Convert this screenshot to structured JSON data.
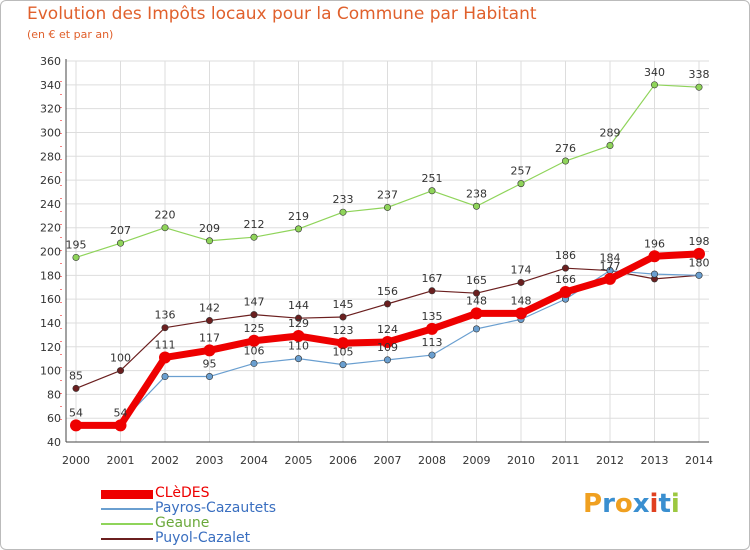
{
  "title": "Evolution des Impôts locaux pour la Commune par Habitant",
  "subtitle": "(en € et par an)",
  "logo": {
    "text": "Proxiti",
    "colors": [
      "#f0a020",
      "#3a8fd0",
      "#f0a020",
      "#3a8fd0",
      "#e04020",
      "#3a8fd0",
      "#9cc840"
    ]
  },
  "chart_data": {
    "type": "line",
    "x": [
      2000,
      2001,
      2002,
      2003,
      2004,
      2005,
      2006,
      2007,
      2008,
      2009,
      2010,
      2011,
      2012,
      2013,
      2014
    ],
    "ylim": [
      40,
      360
    ],
    "yticks": [
      40,
      60,
      80,
      100,
      120,
      140,
      160,
      180,
      200,
      220,
      240,
      260,
      280,
      300,
      320,
      340,
      360
    ],
    "grid": true,
    "legend_position": "bottom-left",
    "series": [
      {
        "name": "CLèDES",
        "color": "#ee0000",
        "values": [
          54,
          54,
          111,
          117,
          125,
          129,
          123,
          124,
          135,
          148,
          148,
          166,
          177,
          196,
          198
        ],
        "labels": [
          "54",
          "54",
          "111",
          "117",
          "125",
          "129",
          "123",
          "124",
          "135",
          "148",
          "148",
          "166",
          "177",
          "196",
          "198"
        ]
      },
      {
        "name": "Payros-Cazautets",
        "color": "#6a9fd0",
        "values": [
          56,
          56,
          95,
          95,
          106,
          110,
          105,
          109,
          113,
          135,
          143,
          160,
          184,
          181,
          180
        ],
        "labels": [
          "",
          "",
          "",
          "95",
          "106",
          "110",
          "105",
          "109",
          "113",
          "",
          "",
          "",
          "",
          "",
          ""
        ]
      },
      {
        "name": "Geaune",
        "color": "#8fd45a",
        "values": [
          195,
          207,
          220,
          209,
          212,
          219,
          233,
          237,
          251,
          238,
          257,
          276,
          289,
          340,
          338
        ],
        "labels": [
          "195",
          "207",
          "220",
          "209",
          "212",
          "219",
          "233",
          "237",
          "251",
          "238",
          "257",
          "276",
          "289",
          "340",
          "338"
        ]
      },
      {
        "name": "Puyol-Cazalet",
        "color": "#6b1f1f",
        "values": [
          85,
          100,
          136,
          142,
          147,
          144,
          145,
          156,
          167,
          165,
          174,
          186,
          184,
          177,
          180
        ],
        "labels": [
          "85",
          "100",
          "136",
          "142",
          "147",
          "144",
          "145",
          "156",
          "167",
          "165",
          "174",
          "186",
          "184",
          "",
          "180"
        ]
      }
    ]
  }
}
